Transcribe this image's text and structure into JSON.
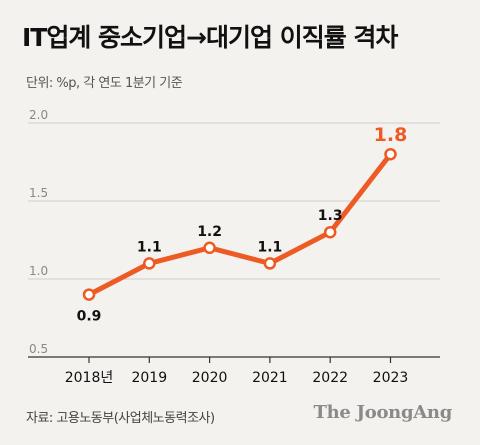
{
  "title": "IT업계 중소기업→대기업 이직률 격차",
  "unit_note": "단위: %p, 각 연도 1분기 기준",
  "source": "자료: 고용노동부(사업체노동력조사)",
  "logo": "The JoongAng",
  "colors": {
    "line": "#ee5a24",
    "highlight": "#ee5a24",
    "grid": "#cfcfcf",
    "axis": "#333333"
  },
  "chart_data": {
    "type": "line",
    "categories": [
      "2018년",
      "2019",
      "2020",
      "2021",
      "2022",
      "2023"
    ],
    "values": [
      0.9,
      1.1,
      1.2,
      1.1,
      1.3,
      1.8
    ],
    "value_labels": [
      "0.9",
      "1.1",
      "1.2",
      "1.1",
      "1.3",
      "1.8"
    ],
    "ylim": [
      0.5,
      2.0
    ],
    "yticks": [
      "0.5",
      "1.0",
      "1.5",
      "2.0"
    ],
    "ytick_values": [
      0.5,
      1.0,
      1.5,
      2.0
    ],
    "grid": true,
    "highlight_last": true
  }
}
